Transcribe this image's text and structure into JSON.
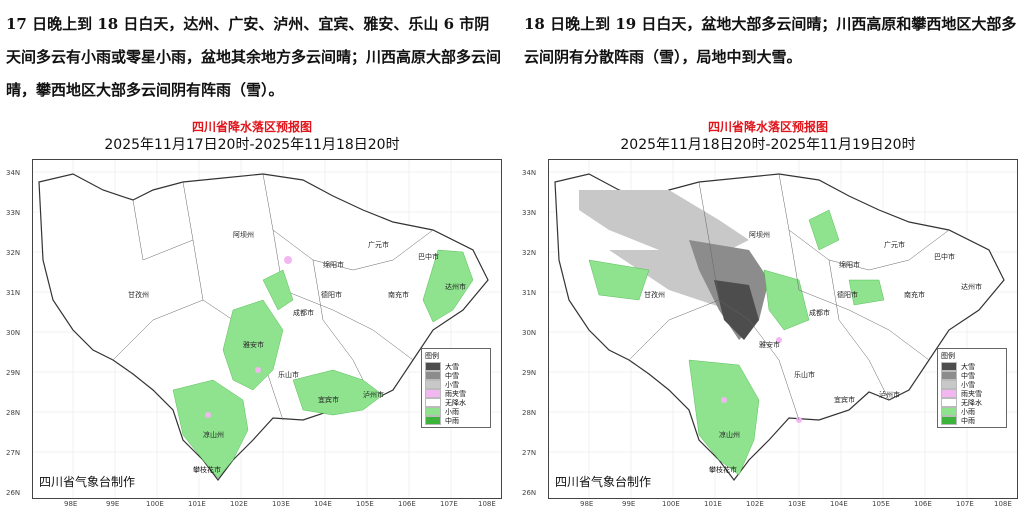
{
  "left": {
    "paragraph": "17 日晚上到 18 日白天，达州、广安、泸州、宜宾、雅安、乐山 6 市阴天间多云有小雨或零星小雨，盆地其余地方多云间晴；川西高原大部多云间晴，攀西地区大部多云间阴有阵雨（雪）。",
    "map_title": "四川省降水落区预报图",
    "map_subtitle": "2025年11月17日20时-2025年11月18日20时",
    "credit": "四川省气象台制作",
    "legend": {
      "title": "图例",
      "items": [
        {
          "label": "大雪",
          "color": "#4d4d4d"
        },
        {
          "label": "中雪",
          "color": "#8c8c8c"
        },
        {
          "label": "小雪",
          "color": "#c8c8c8"
        },
        {
          "label": "雨夹雪",
          "color": "#f2b6f0"
        },
        {
          "label": "无降水",
          "color": "#ffffff"
        },
        {
          "label": "小雨",
          "color": "#8fe38f"
        },
        {
          "label": "中雨",
          "color": "#3cb43c"
        }
      ]
    },
    "cities": [
      {
        "name": "阿坝州"
      },
      {
        "name": "甘孜州"
      },
      {
        "name": "绵阳市"
      },
      {
        "name": "广元市"
      },
      {
        "name": "巴中市"
      },
      {
        "name": "达州市"
      },
      {
        "name": "南充市"
      },
      {
        "name": "德阳市"
      },
      {
        "name": "成都市"
      },
      {
        "name": "雅安市"
      },
      {
        "name": "乐山市"
      },
      {
        "name": "凉山州"
      },
      {
        "name": "宜宾市"
      },
      {
        "name": "泸州市"
      },
      {
        "name": "攀枝花市"
      }
    ]
  },
  "right": {
    "paragraph": "18 日晚上到 19 日白天，盆地大部多云间晴；川西高原和攀西地区大部多云间阴有分散阵雨（雪），局地中到大雪。",
    "map_title": "四川省降水落区预报图",
    "map_subtitle": "2025年11月18日20时-2025年11月19日20时",
    "credit": "四川省气象台制作",
    "legend": {
      "title": "图例",
      "items": [
        {
          "label": "大雪",
          "color": "#4d4d4d"
        },
        {
          "label": "中雪",
          "color": "#8c8c8c"
        },
        {
          "label": "小雪",
          "color": "#c8c8c8"
        },
        {
          "label": "雨夹雪",
          "color": "#f2b6f0"
        },
        {
          "label": "无降水",
          "color": "#ffffff"
        },
        {
          "label": "小雨",
          "color": "#8fe38f"
        },
        {
          "label": "中雨",
          "color": "#3cb43c"
        }
      ]
    },
    "cities": [
      {
        "name": "阿坝州"
      },
      {
        "name": "甘孜州"
      },
      {
        "name": "绵阳市"
      },
      {
        "name": "广元市"
      },
      {
        "name": "巴中市"
      },
      {
        "name": "达州市"
      },
      {
        "name": "南充市"
      },
      {
        "name": "德阳市"
      },
      {
        "name": "成都市"
      },
      {
        "name": "雅安市"
      },
      {
        "name": "乐山市"
      },
      {
        "name": "凉山州"
      },
      {
        "name": "宜宾市"
      },
      {
        "name": "泸州市"
      },
      {
        "name": "攀枝花市"
      }
    ]
  },
  "axes": {
    "lat_labels": [
      "34N",
      "33N",
      "32N",
      "31N",
      "30N",
      "29N",
      "28N",
      "27N",
      "26N"
    ],
    "lon_labels": [
      "98E",
      "99E",
      "100E",
      "101E",
      "102E",
      "103E",
      "104E",
      "105E",
      "106E",
      "107E",
      "108E"
    ]
  }
}
